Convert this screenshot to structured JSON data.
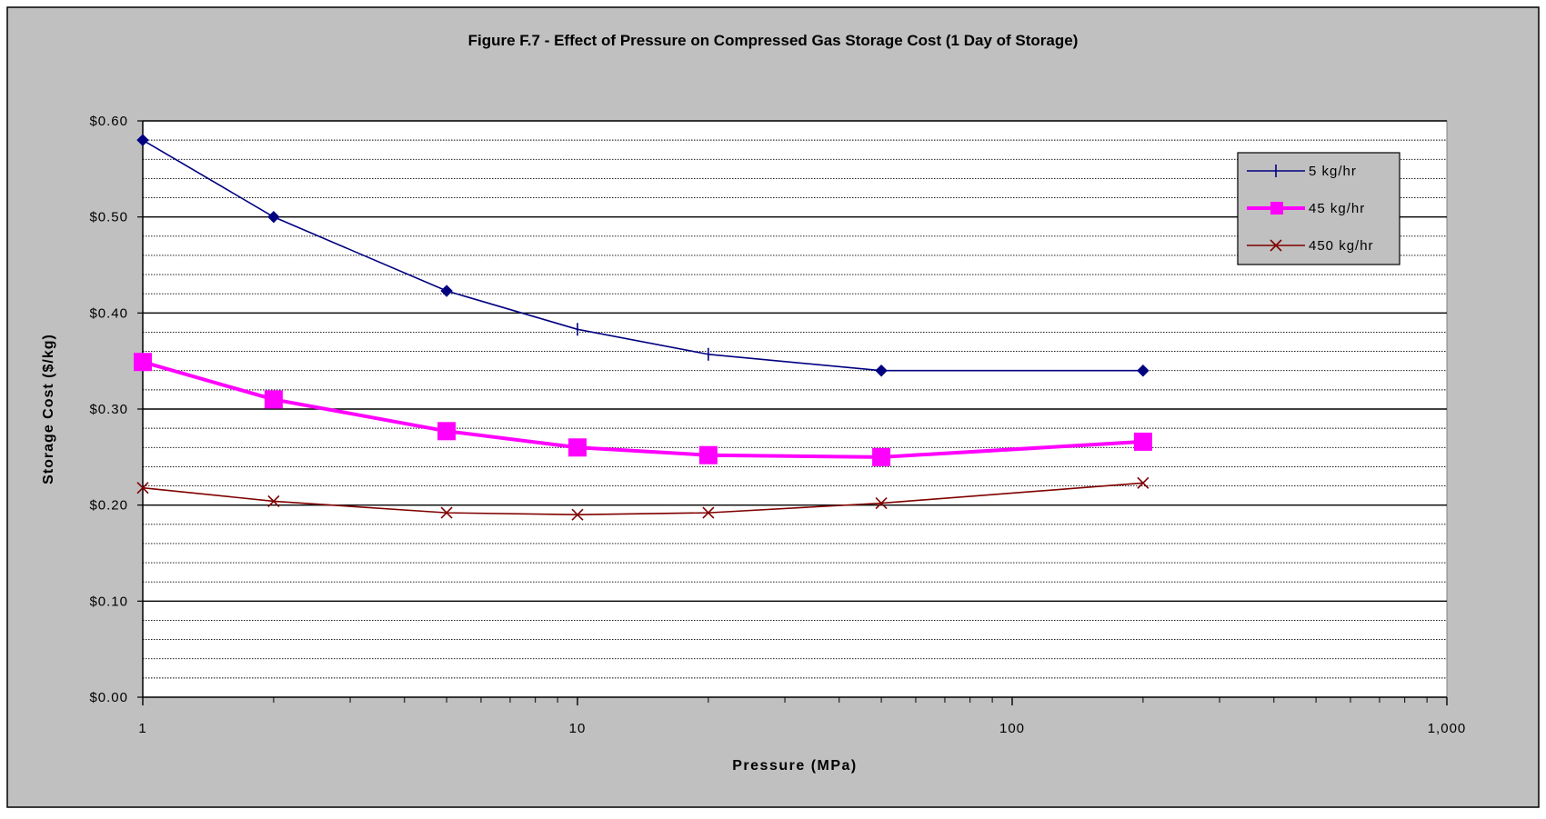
{
  "chart_data": {
    "type": "line",
    "title": "Figure F.7 - Effect of Pressure on Compressed Gas Storage Cost (1 Day of Storage)",
    "xlabel": "Pressure (MPa)",
    "ylabel": "Storage Cost ($/kg)",
    "x_scale": "log",
    "xlim": [
      1,
      1000
    ],
    "ylim": [
      0,
      0.6
    ],
    "x_tick_labels": [
      "1",
      "10",
      "100",
      "1,000"
    ],
    "y_tick_labels": [
      "$0.00",
      "$0.10",
      "$0.20",
      "$0.30",
      "$0.40",
      "$0.50",
      "$0.60"
    ],
    "grid": true,
    "legend_position": "top-right",
    "x": [
      1,
      2,
      5,
      10,
      20,
      50,
      200
    ],
    "series": [
      {
        "name": "5 kg/hr",
        "color": "#000080",
        "marker": "diamond",
        "values": [
          0.58,
          0.5,
          0.423,
          0.383,
          0.357,
          0.34,
          0.34
        ]
      },
      {
        "name": "45 kg/hr",
        "color": "#ff00ff",
        "marker": "square",
        "values": [
          0.349,
          0.31,
          0.277,
          0.26,
          0.252,
          0.25,
          0.266
        ]
      },
      {
        "name": "450 kg/hr",
        "color": "#800000",
        "marker": "x",
        "values": [
          0.218,
          0.204,
          0.192,
          0.19,
          0.192,
          0.202,
          0.223
        ]
      }
    ],
    "colors": {
      "frame_background": "#c0c0c0",
      "plot_background": "#ffffff",
      "legend_background": "#c0c0c0"
    }
  }
}
